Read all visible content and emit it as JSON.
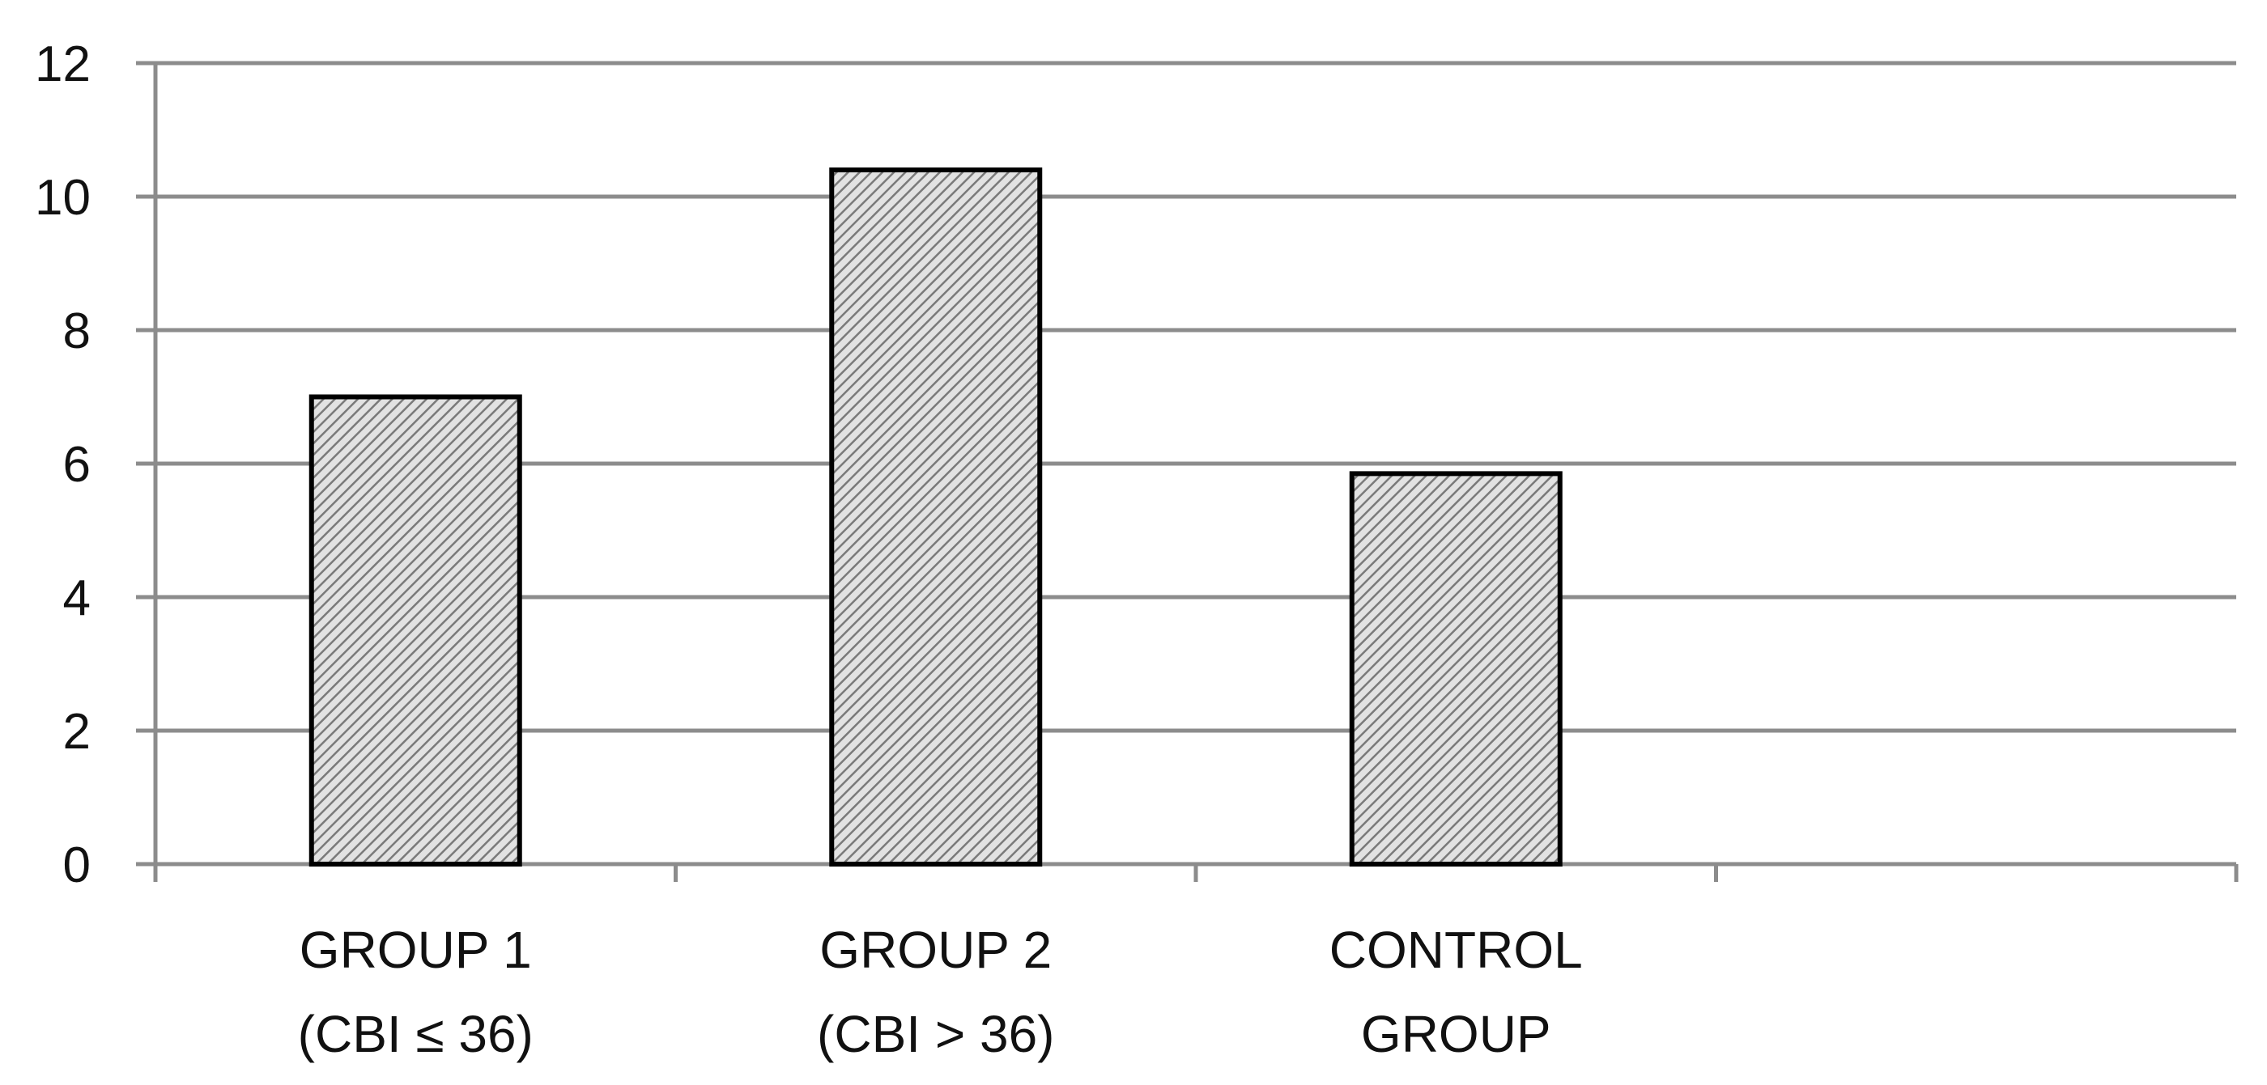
{
  "chart_data": {
    "type": "bar",
    "categories": [
      [
        "GROUP 1",
        "(CBI ≤ 36)"
      ],
      [
        "GROUP 2",
        "(CBI > 36)"
      ],
      [
        "CONTROL",
        "GROUP"
      ],
      [
        "",
        ""
      ]
    ],
    "values": [
      7.0,
      10.4,
      5.85,
      null
    ],
    "ylim": [
      0,
      12
    ],
    "yticks": [
      "0",
      "2",
      "4",
      "6",
      "8",
      "10",
      "12"
    ],
    "title": "",
    "xlabel": "",
    "ylabel": "",
    "grid": true,
    "legend": "none",
    "colors": {
      "bar_fill_pattern": "diagonal-hatch",
      "bar_fill": "#d9d9d9",
      "hatch": "#8a8a8a",
      "bar_stroke": "#000000",
      "grid": "#8c8c8c"
    }
  }
}
